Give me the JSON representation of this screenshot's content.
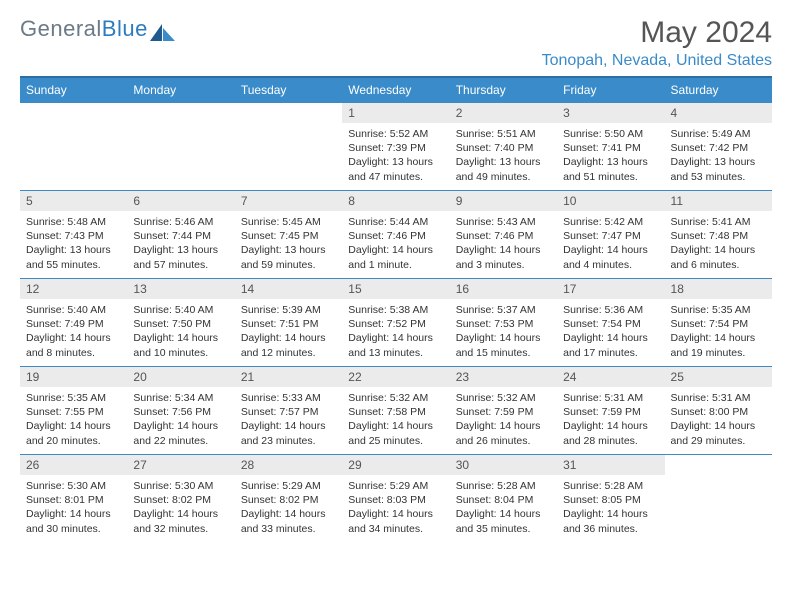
{
  "logo": {
    "text_general": "General",
    "text_blue": "Blue"
  },
  "title": "May 2024",
  "location": "Tonopah, Nevada, United States",
  "day_headers": [
    "Sunday",
    "Monday",
    "Tuesday",
    "Wednesday",
    "Thursday",
    "Friday",
    "Saturday"
  ],
  "colors": {
    "brand_blue": "#3a8bc9",
    "header_border": "#2d6fa3",
    "daynum_bg": "#ebebeb",
    "text": "#333333",
    "logo_gray": "#6b7a86"
  },
  "weeks": [
    [
      null,
      null,
      null,
      {
        "num": "1",
        "sunrise": "Sunrise: 5:52 AM",
        "sunset": "Sunset: 7:39 PM",
        "daylight": "Daylight: 13 hours and 47 minutes."
      },
      {
        "num": "2",
        "sunrise": "Sunrise: 5:51 AM",
        "sunset": "Sunset: 7:40 PM",
        "daylight": "Daylight: 13 hours and 49 minutes."
      },
      {
        "num": "3",
        "sunrise": "Sunrise: 5:50 AM",
        "sunset": "Sunset: 7:41 PM",
        "daylight": "Daylight: 13 hours and 51 minutes."
      },
      {
        "num": "4",
        "sunrise": "Sunrise: 5:49 AM",
        "sunset": "Sunset: 7:42 PM",
        "daylight": "Daylight: 13 hours and 53 minutes."
      }
    ],
    [
      {
        "num": "5",
        "sunrise": "Sunrise: 5:48 AM",
        "sunset": "Sunset: 7:43 PM",
        "daylight": "Daylight: 13 hours and 55 minutes."
      },
      {
        "num": "6",
        "sunrise": "Sunrise: 5:46 AM",
        "sunset": "Sunset: 7:44 PM",
        "daylight": "Daylight: 13 hours and 57 minutes."
      },
      {
        "num": "7",
        "sunrise": "Sunrise: 5:45 AM",
        "sunset": "Sunset: 7:45 PM",
        "daylight": "Daylight: 13 hours and 59 minutes."
      },
      {
        "num": "8",
        "sunrise": "Sunrise: 5:44 AM",
        "sunset": "Sunset: 7:46 PM",
        "daylight": "Daylight: 14 hours and 1 minute."
      },
      {
        "num": "9",
        "sunrise": "Sunrise: 5:43 AM",
        "sunset": "Sunset: 7:46 PM",
        "daylight": "Daylight: 14 hours and 3 minutes."
      },
      {
        "num": "10",
        "sunrise": "Sunrise: 5:42 AM",
        "sunset": "Sunset: 7:47 PM",
        "daylight": "Daylight: 14 hours and 4 minutes."
      },
      {
        "num": "11",
        "sunrise": "Sunrise: 5:41 AM",
        "sunset": "Sunset: 7:48 PM",
        "daylight": "Daylight: 14 hours and 6 minutes."
      }
    ],
    [
      {
        "num": "12",
        "sunrise": "Sunrise: 5:40 AM",
        "sunset": "Sunset: 7:49 PM",
        "daylight": "Daylight: 14 hours and 8 minutes."
      },
      {
        "num": "13",
        "sunrise": "Sunrise: 5:40 AM",
        "sunset": "Sunset: 7:50 PM",
        "daylight": "Daylight: 14 hours and 10 minutes."
      },
      {
        "num": "14",
        "sunrise": "Sunrise: 5:39 AM",
        "sunset": "Sunset: 7:51 PM",
        "daylight": "Daylight: 14 hours and 12 minutes."
      },
      {
        "num": "15",
        "sunrise": "Sunrise: 5:38 AM",
        "sunset": "Sunset: 7:52 PM",
        "daylight": "Daylight: 14 hours and 13 minutes."
      },
      {
        "num": "16",
        "sunrise": "Sunrise: 5:37 AM",
        "sunset": "Sunset: 7:53 PM",
        "daylight": "Daylight: 14 hours and 15 minutes."
      },
      {
        "num": "17",
        "sunrise": "Sunrise: 5:36 AM",
        "sunset": "Sunset: 7:54 PM",
        "daylight": "Daylight: 14 hours and 17 minutes."
      },
      {
        "num": "18",
        "sunrise": "Sunrise: 5:35 AM",
        "sunset": "Sunset: 7:54 PM",
        "daylight": "Daylight: 14 hours and 19 minutes."
      }
    ],
    [
      {
        "num": "19",
        "sunrise": "Sunrise: 5:35 AM",
        "sunset": "Sunset: 7:55 PM",
        "daylight": "Daylight: 14 hours and 20 minutes."
      },
      {
        "num": "20",
        "sunrise": "Sunrise: 5:34 AM",
        "sunset": "Sunset: 7:56 PM",
        "daylight": "Daylight: 14 hours and 22 minutes."
      },
      {
        "num": "21",
        "sunrise": "Sunrise: 5:33 AM",
        "sunset": "Sunset: 7:57 PM",
        "daylight": "Daylight: 14 hours and 23 minutes."
      },
      {
        "num": "22",
        "sunrise": "Sunrise: 5:32 AM",
        "sunset": "Sunset: 7:58 PM",
        "daylight": "Daylight: 14 hours and 25 minutes."
      },
      {
        "num": "23",
        "sunrise": "Sunrise: 5:32 AM",
        "sunset": "Sunset: 7:59 PM",
        "daylight": "Daylight: 14 hours and 26 minutes."
      },
      {
        "num": "24",
        "sunrise": "Sunrise: 5:31 AM",
        "sunset": "Sunset: 7:59 PM",
        "daylight": "Daylight: 14 hours and 28 minutes."
      },
      {
        "num": "25",
        "sunrise": "Sunrise: 5:31 AM",
        "sunset": "Sunset: 8:00 PM",
        "daylight": "Daylight: 14 hours and 29 minutes."
      }
    ],
    [
      {
        "num": "26",
        "sunrise": "Sunrise: 5:30 AM",
        "sunset": "Sunset: 8:01 PM",
        "daylight": "Daylight: 14 hours and 30 minutes."
      },
      {
        "num": "27",
        "sunrise": "Sunrise: 5:30 AM",
        "sunset": "Sunset: 8:02 PM",
        "daylight": "Daylight: 14 hours and 32 minutes."
      },
      {
        "num": "28",
        "sunrise": "Sunrise: 5:29 AM",
        "sunset": "Sunset: 8:02 PM",
        "daylight": "Daylight: 14 hours and 33 minutes."
      },
      {
        "num": "29",
        "sunrise": "Sunrise: 5:29 AM",
        "sunset": "Sunset: 8:03 PM",
        "daylight": "Daylight: 14 hours and 34 minutes."
      },
      {
        "num": "30",
        "sunrise": "Sunrise: 5:28 AM",
        "sunset": "Sunset: 8:04 PM",
        "daylight": "Daylight: 14 hours and 35 minutes."
      },
      {
        "num": "31",
        "sunrise": "Sunrise: 5:28 AM",
        "sunset": "Sunset: 8:05 PM",
        "daylight": "Daylight: 14 hours and 36 minutes."
      },
      null
    ]
  ]
}
